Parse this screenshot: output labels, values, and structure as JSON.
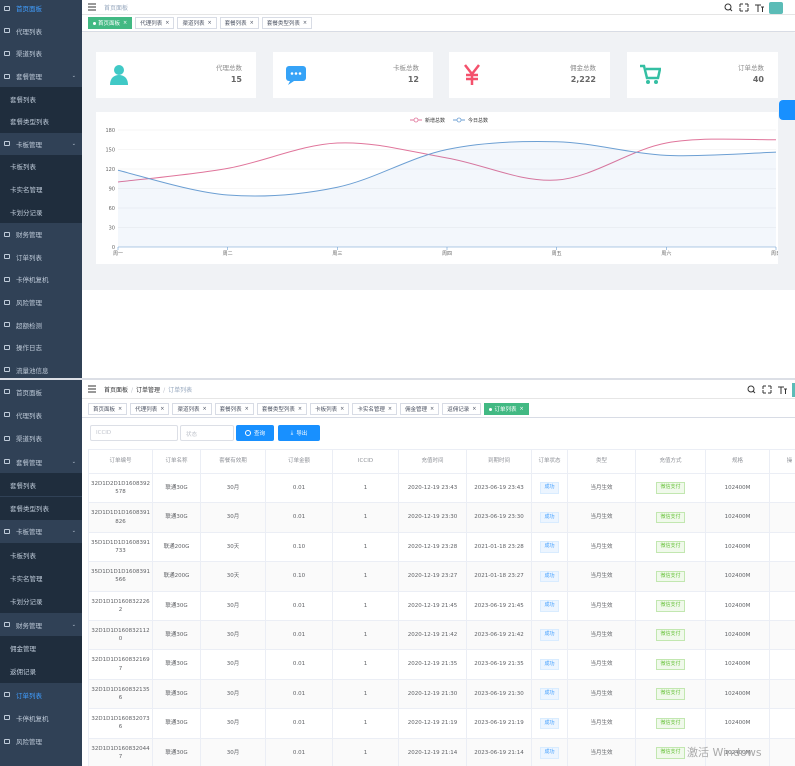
{
  "dashboard": {
    "sidebar": [
      {
        "label": "首页面板",
        "active": true
      },
      {
        "label": "代理列表"
      },
      {
        "label": "渠道列表"
      },
      {
        "label": "套餐管理",
        "children": [
          "套餐列表",
          "套餐类型列表"
        ]
      },
      {
        "label": "卡板管理",
        "children": [
          "卡板列表",
          "卡实名管理",
          "卡划分记录"
        ]
      },
      {
        "label": "财务管理"
      },
      {
        "label": "订单列表"
      },
      {
        "label": "卡停机复机"
      },
      {
        "label": "风险管理"
      },
      {
        "label": "超额检测"
      },
      {
        "label": "操作日志"
      },
      {
        "label": "流量池信息"
      }
    ],
    "breadcrumb": [
      "首页面板"
    ],
    "tabs": [
      "首页面板",
      "代理列表",
      "渠道列表",
      "套餐列表",
      "套餐类型列表"
    ],
    "cards": [
      {
        "label": "代理总数",
        "value": "15"
      },
      {
        "label": "卡板总数",
        "value": "12"
      },
      {
        "label": "佣金总数",
        "value": "2,222"
      },
      {
        "label": "订单总数",
        "value": "40"
      }
    ]
  },
  "chart_data": {
    "type": "line",
    "categories": [
      "周一",
      "周二",
      "周三",
      "周四",
      "周五",
      "周六",
      "周日"
    ],
    "series": [
      {
        "name": "新增总数",
        "color": "#e0759b",
        "values": [
          100,
          121,
          160,
          137,
          103,
          160,
          165
        ]
      },
      {
        "name": "今日总数",
        "color": "#6c9fd3",
        "values": [
          118,
          80,
          92,
          150,
          162,
          141,
          146
        ],
        "area": true
      }
    ],
    "ylim": [
      0,
      180
    ],
    "yticks": [
      0,
      30,
      60,
      90,
      120,
      150,
      180
    ],
    "grid": true
  },
  "orders": {
    "sidebar": [
      {
        "label": "首页面板"
      },
      {
        "label": "代理列表"
      },
      {
        "label": "渠道列表"
      },
      {
        "label": "套餐管理",
        "children": [
          "套餐列表",
          "套餐类型列表"
        ]
      },
      {
        "label": "卡板管理",
        "children": [
          "卡板列表",
          "卡实名管理",
          "卡划分记录"
        ]
      },
      {
        "label": "财务管理",
        "children": [
          "佣金管理",
          "返佣记录"
        ]
      },
      {
        "label": "订单列表",
        "active": true
      },
      {
        "label": "卡停机复机"
      },
      {
        "label": "风险管理"
      }
    ],
    "breadcrumb": [
      "首页面板",
      "订单管理",
      "订单列表"
    ],
    "tabs": [
      "首页面板",
      "代理列表",
      "渠道列表",
      "套餐列表",
      "套餐类型列表",
      "卡板列表",
      "卡实名管理",
      "佣金管理",
      "返佣记录",
      "订单列表"
    ],
    "search": {
      "iccid": "ICCID",
      "status": "状态",
      "query": "查询",
      "export": "导出"
    },
    "table": {
      "columns": [
        "订单编号",
        "订单名称",
        "套餐有效期",
        "订单金额",
        "ICCID",
        "充值时间",
        "到期时间",
        "订单状态",
        "类型",
        "充值方式",
        "规格",
        "操"
      ],
      "rows": [
        [
          "32D1D2D1D1608392578",
          "联通30G",
          "30月",
          "0.01",
          "1",
          "2020-12-19 23:43",
          "2023-06-19 23:43",
          "成功",
          "当月生效",
          "微信支付",
          "102400M"
        ],
        [
          "32D1D1D1D1608391826",
          "联通30G",
          "30月",
          "0.01",
          "1",
          "2020-12-19 23:30",
          "2023-06-19 23:30",
          "成功",
          "当月生效",
          "微信支付",
          "102400M"
        ],
        [
          "35D1D1D1D1608391733",
          "联通200G",
          "30天",
          "0.10",
          "1",
          "2020-12-19 23:28",
          "2021-01-18 23:28",
          "成功",
          "当月生效",
          "微信支付",
          "102400M"
        ],
        [
          "35D1D1D1D1608391566",
          "联通200G",
          "30天",
          "0.10",
          "1",
          "2020-12-19 23:27",
          "2021-01-18 23:27",
          "成功",
          "当月生效",
          "微信支付",
          "102400M"
        ],
        [
          "32D1D1D1608322262",
          "联通30G",
          "30月",
          "0.01",
          "1",
          "2020-12-19 21:45",
          "2023-06-19 21:45",
          "成功",
          "当月生效",
          "微信支付",
          "102400M"
        ],
        [
          "32D1D1D1608321120",
          "联通30G",
          "30月",
          "0.01",
          "1",
          "2020-12-19 21:42",
          "2023-06-19 21:42",
          "成功",
          "当月生效",
          "微信支付",
          "102400M"
        ],
        [
          "32D1D1D1608321697",
          "联通30G",
          "30月",
          "0.01",
          "1",
          "2020-12-19 21:35",
          "2023-06-19 21:35",
          "成功",
          "当月生效",
          "微信支付",
          "102400M"
        ],
        [
          "32D1D1D1608321356",
          "联通30G",
          "30月",
          "0.01",
          "1",
          "2020-12-19 21:30",
          "2023-06-19 21:30",
          "成功",
          "当月生效",
          "微信支付",
          "102400M"
        ],
        [
          "32D1D1D1608320736",
          "联通30G",
          "30月",
          "0.01",
          "1",
          "2020-12-19 21:19",
          "2023-06-19 21:19",
          "成功",
          "当月生效",
          "微信支付",
          "102400M"
        ],
        [
          "32D1D1D1608320447",
          "联通30G",
          "30月",
          "0.01",
          "1",
          "2020-12-19 21:14",
          "2023-06-19 21:14",
          "成功",
          "当月生效",
          "微信支付",
          "102400M"
        ]
      ]
    },
    "watermark": "激活 Windows"
  }
}
